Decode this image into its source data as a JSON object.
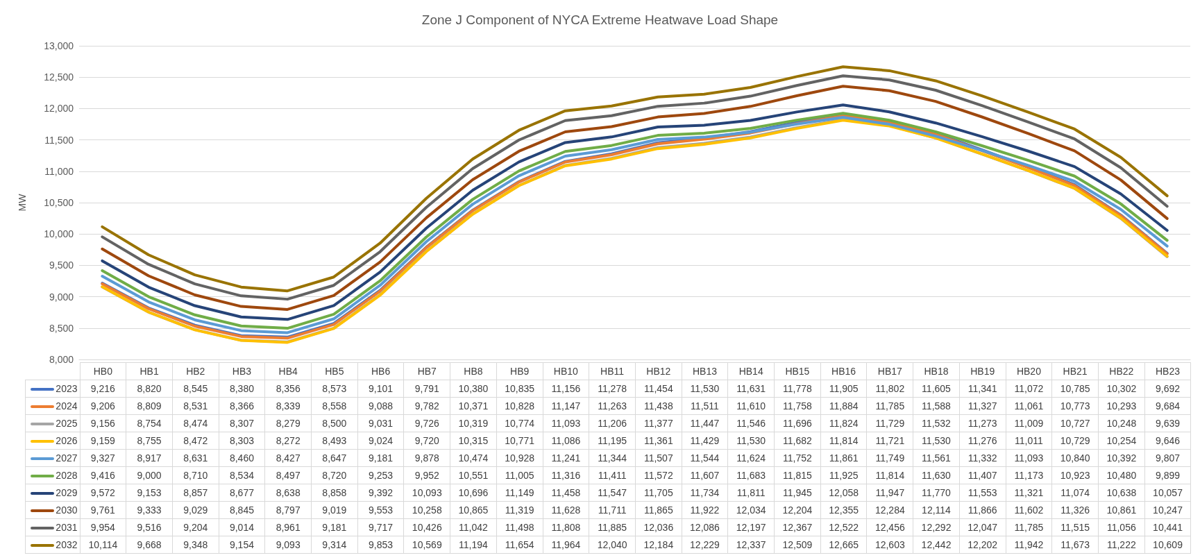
{
  "chart_data": {
    "type": "line",
    "title": "Zone J Component of NYCA Extreme Heatwave Load Shape",
    "ylabel": "MW",
    "categories": [
      "HB0",
      "HB1",
      "HB2",
      "HB3",
      "HB4",
      "HB5",
      "HB6",
      "HB7",
      "HB8",
      "HB9",
      "HB10",
      "HB11",
      "HB12",
      "HB13",
      "HB14",
      "HB15",
      "HB16",
      "HB17",
      "HB18",
      "HB19",
      "HB20",
      "HB21",
      "HB22",
      "HB23"
    ],
    "ylim": [
      8000,
      13000
    ],
    "yticks": [
      {
        "value": 8000,
        "label": "8,000"
      },
      {
        "value": 8500,
        "label": "8,500"
      },
      {
        "value": 9000,
        "label": "9,000"
      },
      {
        "value": 9500,
        "label": "9,500"
      },
      {
        "value": 10000,
        "label": "10,000"
      },
      {
        "value": 10500,
        "label": "10,500"
      },
      {
        "value": 11000,
        "label": "11,000"
      },
      {
        "value": 11500,
        "label": "11,500"
      },
      {
        "value": 12000,
        "label": "12,000"
      },
      {
        "value": 12500,
        "label": "12,500"
      },
      {
        "value": 13000,
        "label": "13,000"
      }
    ],
    "grid": "y",
    "legend": "bottom",
    "marker": "none",
    "line_style": "solid",
    "series": [
      {
        "name": "2023",
        "color": "#4472c4",
        "values": [
          9216,
          8820,
          8545,
          8380,
          8356,
          8573,
          9101,
          9791,
          10380,
          10835,
          11156,
          11278,
          11454,
          11530,
          11631,
          11778,
          11905,
          11802,
          11605,
          11341,
          11072,
          10785,
          10302,
          9692
        ],
        "value_labels": [
          "9,216",
          "8,820",
          "8,545",
          "8,380",
          "8,356",
          "8,573",
          "9,101",
          "9,791",
          "10,380",
          "10,835",
          "11,156",
          "11,278",
          "11,454",
          "11,530",
          "11,631",
          "11,778",
          "11,905",
          "11,802",
          "11,605",
          "11,341",
          "11,072",
          "10,785",
          "10,302",
          "9,692"
        ]
      },
      {
        "name": "2024",
        "color": "#ed7d31",
        "values": [
          9206,
          8809,
          8531,
          8366,
          8339,
          8558,
          9088,
          9782,
          10371,
          10828,
          11147,
          11263,
          11438,
          11511,
          11610,
          11758,
          11884,
          11785,
          11588,
          11327,
          11061,
          10773,
          10293,
          9684
        ],
        "value_labels": [
          "9,206",
          "8,809",
          "8,531",
          "8,366",
          "8,339",
          "8,558",
          "9,088",
          "9,782",
          "10,371",
          "10,828",
          "11,147",
          "11,263",
          "11,438",
          "11,511",
          "11,610",
          "11,758",
          "11,884",
          "11,785",
          "11,588",
          "11,327",
          "11,061",
          "10,773",
          "10,293",
          "9,684"
        ]
      },
      {
        "name": "2025",
        "color": "#a5a5a5",
        "values": [
          9156,
          8754,
          8474,
          8307,
          8279,
          8500,
          9031,
          9726,
          10319,
          10774,
          11093,
          11206,
          11377,
          11447,
          11546,
          11696,
          11824,
          11729,
          11532,
          11273,
          11009,
          10727,
          10248,
          9639
        ],
        "value_labels": [
          "9,156",
          "8,754",
          "8,474",
          "8,307",
          "8,279",
          "8,500",
          "9,031",
          "9,726",
          "10,319",
          "10,774",
          "11,093",
          "11,206",
          "11,377",
          "11,447",
          "11,546",
          "11,696",
          "11,824",
          "11,729",
          "11,532",
          "11,273",
          "11,009",
          "10,727",
          "10,248",
          "9,639"
        ]
      },
      {
        "name": "2026",
        "color": "#ffc000",
        "values": [
          9159,
          8755,
          8472,
          8303,
          8272,
          8493,
          9024,
          9720,
          10315,
          10771,
          11086,
          11195,
          11361,
          11429,
          11530,
          11682,
          11814,
          11721,
          11530,
          11276,
          11011,
          10729,
          10254,
          9646
        ],
        "value_labels": [
          "9,159",
          "8,755",
          "8,472",
          "8,303",
          "8,272",
          "8,493",
          "9,024",
          "9,720",
          "10,315",
          "10,771",
          "11,086",
          "11,195",
          "11,361",
          "11,429",
          "11,530",
          "11,682",
          "11,814",
          "11,721",
          "11,530",
          "11,276",
          "11,011",
          "10,729",
          "10,254",
          "9,646"
        ]
      },
      {
        "name": "2027",
        "color": "#5b9bd5",
        "values": [
          9327,
          8917,
          8631,
          8460,
          8427,
          8647,
          9181,
          9878,
          10474,
          10928,
          11241,
          11344,
          11507,
          11544,
          11624,
          11752,
          11861,
          11749,
          11561,
          11332,
          11093,
          10840,
          10392,
          9807
        ],
        "value_labels": [
          "9,327",
          "8,917",
          "8,631",
          "8,460",
          "8,427",
          "8,647",
          "9,181",
          "9,878",
          "10,474",
          "10,928",
          "11,241",
          "11,344",
          "11,507",
          "11,544",
          "11,624",
          "11,752",
          "11,861",
          "11,749",
          "11,561",
          "11,332",
          "11,093",
          "10,840",
          "10,392",
          "9,807"
        ]
      },
      {
        "name": "2028",
        "color": "#70ad47",
        "values": [
          9416,
          9000,
          8710,
          8534,
          8497,
          8720,
          9253,
          9952,
          10551,
          11005,
          11316,
          11411,
          11572,
          11607,
          11683,
          11815,
          11925,
          11814,
          11630,
          11407,
          11173,
          10923,
          10480,
          9899
        ],
        "value_labels": [
          "9,416",
          "9,000",
          "8,710",
          "8,534",
          "8,497",
          "8,720",
          "9,253",
          "9,952",
          "10,551",
          "11,005",
          "11,316",
          "11,411",
          "11,572",
          "11,607",
          "11,683",
          "11,815",
          "11,925",
          "11,814",
          "11,630",
          "11,407",
          "11,173",
          "10,923",
          "10,480",
          "9,899"
        ]
      },
      {
        "name": "2029",
        "color": "#264478",
        "values": [
          9572,
          9153,
          8857,
          8677,
          8638,
          8858,
          9392,
          10093,
          10696,
          11149,
          11458,
          11547,
          11705,
          11734,
          11811,
          11945,
          12058,
          11947,
          11770,
          11553,
          11321,
          11074,
          10638,
          10057
        ],
        "value_labels": [
          "9,572",
          "9,153",
          "8,857",
          "8,677",
          "8,638",
          "8,858",
          "9,392",
          "10,093",
          "10,696",
          "11,149",
          "11,458",
          "11,547",
          "11,705",
          "11,734",
          "11,811",
          "11,945",
          "12,058",
          "11,947",
          "11,770",
          "11,553",
          "11,321",
          "11,074",
          "10,638",
          "10,057"
        ]
      },
      {
        "name": "2030",
        "color": "#9e480e",
        "values": [
          9761,
          9333,
          9029,
          8845,
          8797,
          9019,
          9553,
          10258,
          10865,
          11319,
          11628,
          11711,
          11865,
          11922,
          12034,
          12204,
          12355,
          12284,
          12114,
          11866,
          11602,
          11326,
          10861,
          10247
        ],
        "value_labels": [
          "9,761",
          "9,333",
          "9,029",
          "8,845",
          "8,797",
          "9,019",
          "9,553",
          "10,258",
          "10,865",
          "11,319",
          "11,628",
          "11,711",
          "11,865",
          "11,922",
          "12,034",
          "12,204",
          "12,355",
          "12,284",
          "12,114",
          "11,866",
          "11,602",
          "11,326",
          "10,861",
          "10,247"
        ]
      },
      {
        "name": "2031",
        "color": "#636363",
        "values": [
          9954,
          9516,
          9204,
          9014,
          8961,
          9181,
          9717,
          10426,
          11042,
          11498,
          11808,
          11885,
          12036,
          12086,
          12197,
          12367,
          12522,
          12456,
          12292,
          12047,
          11785,
          11515,
          11056,
          10441
        ],
        "value_labels": [
          "9,954",
          "9,516",
          "9,204",
          "9,014",
          "8,961",
          "9,181",
          "9,717",
          "10,426",
          "11,042",
          "11,498",
          "11,808",
          "11,885",
          "12,036",
          "12,086",
          "12,197",
          "12,367",
          "12,522",
          "12,456",
          "12,292",
          "12,047",
          "11,785",
          "11,515",
          "11,056",
          "10,441"
        ]
      },
      {
        "name": "2032",
        "color": "#997300",
        "values": [
          10114,
          9668,
          9348,
          9154,
          9093,
          9314,
          9853,
          10569,
          11194,
          11654,
          11964,
          12040,
          12184,
          12229,
          12337,
          12509,
          12665,
          12603,
          12442,
          12202,
          11942,
          11673,
          11222,
          10609
        ],
        "value_labels": [
          "10,114",
          "9,668",
          "9,348",
          "9,154",
          "9,093",
          "9,314",
          "9,853",
          "10,569",
          "11,194",
          "11,654",
          "11,964",
          "12,040",
          "12,184",
          "12,229",
          "12,337",
          "12,509",
          "12,665",
          "12,603",
          "12,442",
          "12,202",
          "11,942",
          "11,673",
          "11,222",
          "10,609"
        ]
      }
    ]
  }
}
